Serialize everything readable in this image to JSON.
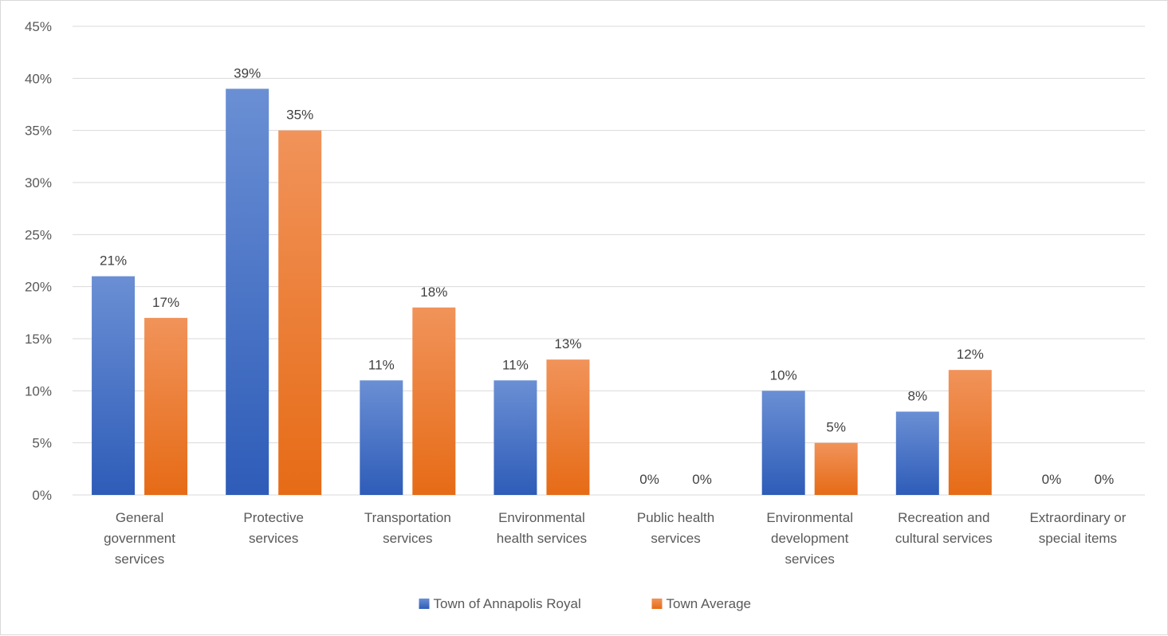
{
  "chart_data": {
    "type": "bar",
    "categories": [
      [
        "General",
        "government",
        "services"
      ],
      [
        "Protective",
        "services"
      ],
      [
        "Transportation",
        "services"
      ],
      [
        "Environmental",
        "health services"
      ],
      [
        "Public health",
        "services"
      ],
      [
        "Environmental",
        "development",
        "services"
      ],
      [
        "Recreation and",
        "cultural services"
      ],
      [
        "Extraordinary or",
        "special items"
      ]
    ],
    "series": [
      {
        "name": "Town of Annapolis Royal",
        "values": [
          21,
          39,
          11,
          11,
          0,
          10,
          8,
          0
        ],
        "color": "#4472c4"
      },
      {
        "name": "Town Average",
        "values": [
          17,
          35,
          18,
          13,
          0,
          5,
          12,
          0
        ],
        "color": "#ed7d31"
      }
    ],
    "data_labels": [
      [
        "21%",
        "39%",
        "11%",
        "11%",
        "0%",
        "10%",
        "8%",
        "0%"
      ],
      [
        "17%",
        "35%",
        "18%",
        "13%",
        "0%",
        "5%",
        "12%",
        "0%"
      ]
    ],
    "y_ticks": [
      "0%",
      "5%",
      "10%",
      "15%",
      "20%",
      "25%",
      "30%",
      "35%",
      "40%",
      "45%"
    ],
    "ylim": [
      0,
      45
    ],
    "y_step": 5,
    "grid": true,
    "legend_position": "bottom",
    "title": "",
    "xlabel": "",
    "ylabel": ""
  }
}
